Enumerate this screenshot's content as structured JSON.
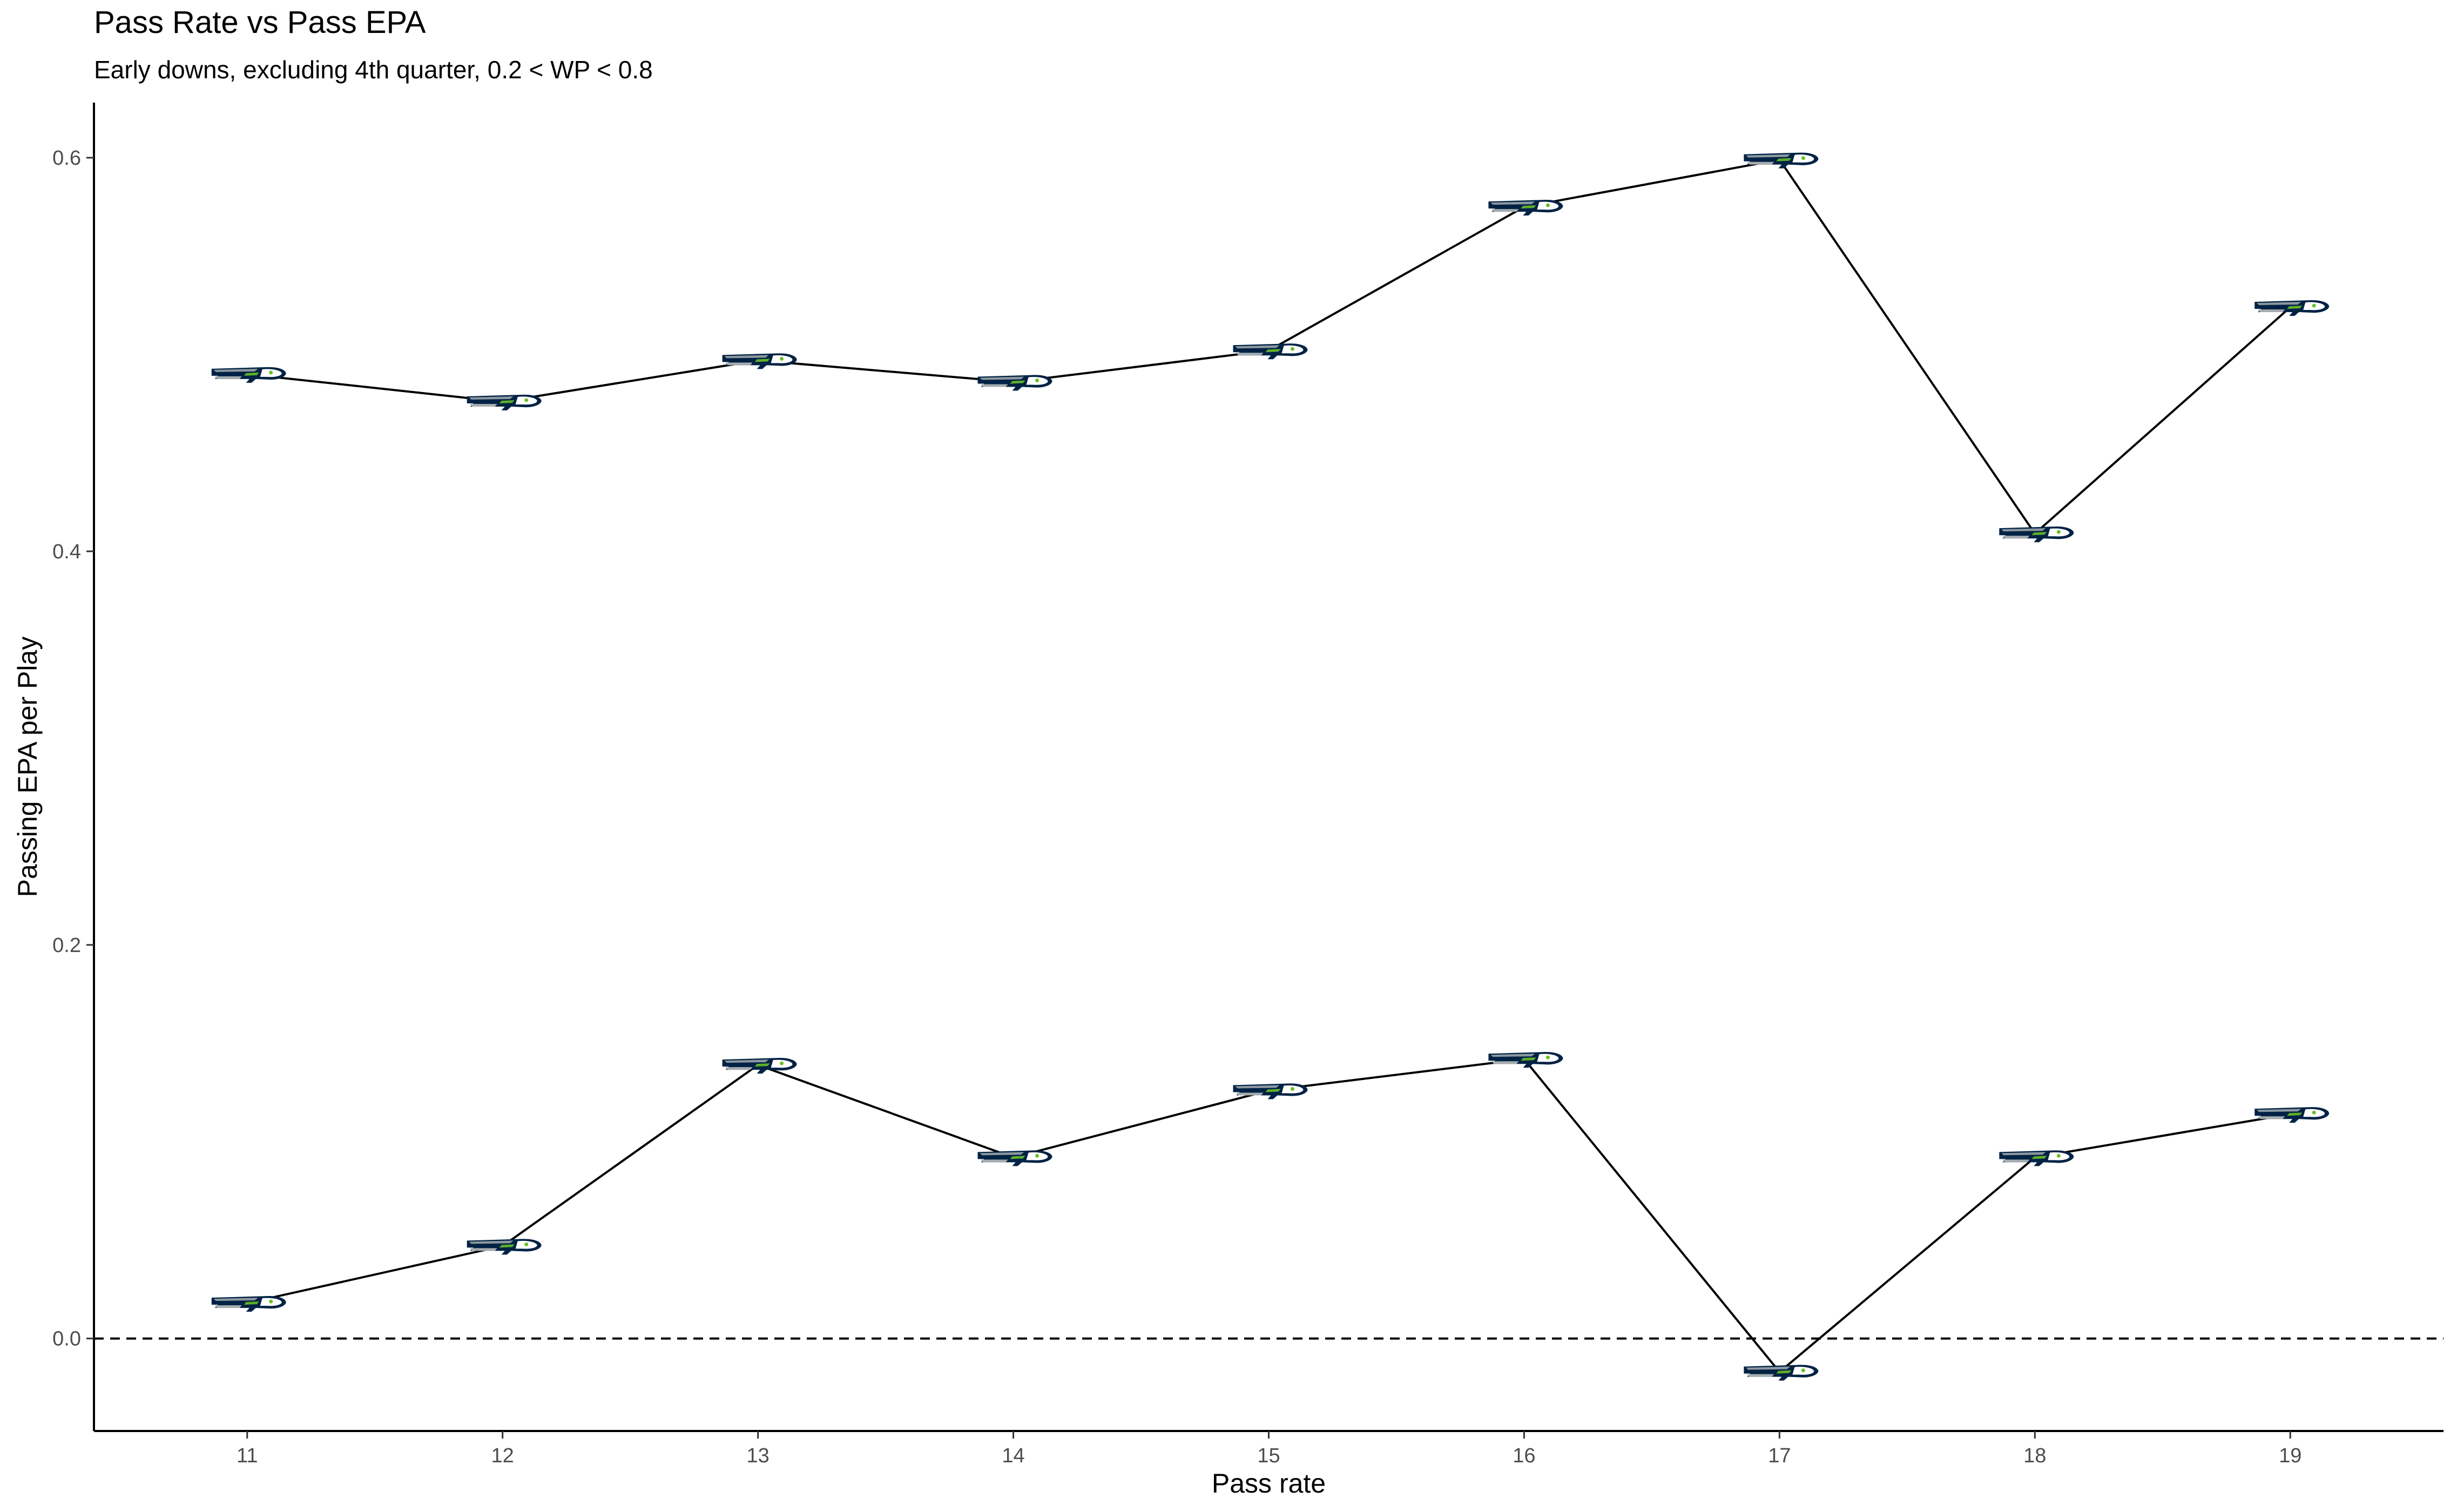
{
  "chart_data": {
    "type": "line",
    "title": "Pass Rate vs Pass EPA",
    "subtitle": "Early downs, excluding 4th quarter, 0.2 < WP < 0.8",
    "xlabel": "Pass rate",
    "ylabel": "Passing EPA per Play",
    "xlim": [
      10.4,
      19.6
    ],
    "ylim": [
      -0.047,
      0.628
    ],
    "x_ticks": [
      11,
      12,
      13,
      14,
      15,
      16,
      17,
      18,
      19
    ],
    "y_ticks": [
      0.0,
      0.2,
      0.4,
      0.6
    ],
    "y_tick_labels": [
      "0.0",
      "0.2",
      "0.4",
      "0.6"
    ],
    "grid": false,
    "reference_line": {
      "y": 0.0,
      "style": "dashed"
    },
    "marker_icon": "seahawks-logo-icon",
    "colors": {
      "line": "#000000",
      "logo_navy": "#002244",
      "logo_grey": "#a5acaf",
      "logo_green": "#69be28"
    },
    "series": [
      {
        "x": [
          11,
          12,
          13,
          14,
          15,
          16,
          17,
          18,
          19
        ],
        "values": [
          0.49,
          0.476,
          0.497,
          0.486,
          0.502,
          0.575,
          0.599,
          0.409,
          0.524
        ]
      },
      {
        "x": [
          11,
          12,
          13,
          14,
          15,
          16,
          17,
          18,
          19
        ],
        "values": [
          0.018,
          0.047,
          0.139,
          0.092,
          0.126,
          0.142,
          -0.017,
          0.092,
          0.114
        ]
      }
    ]
  }
}
